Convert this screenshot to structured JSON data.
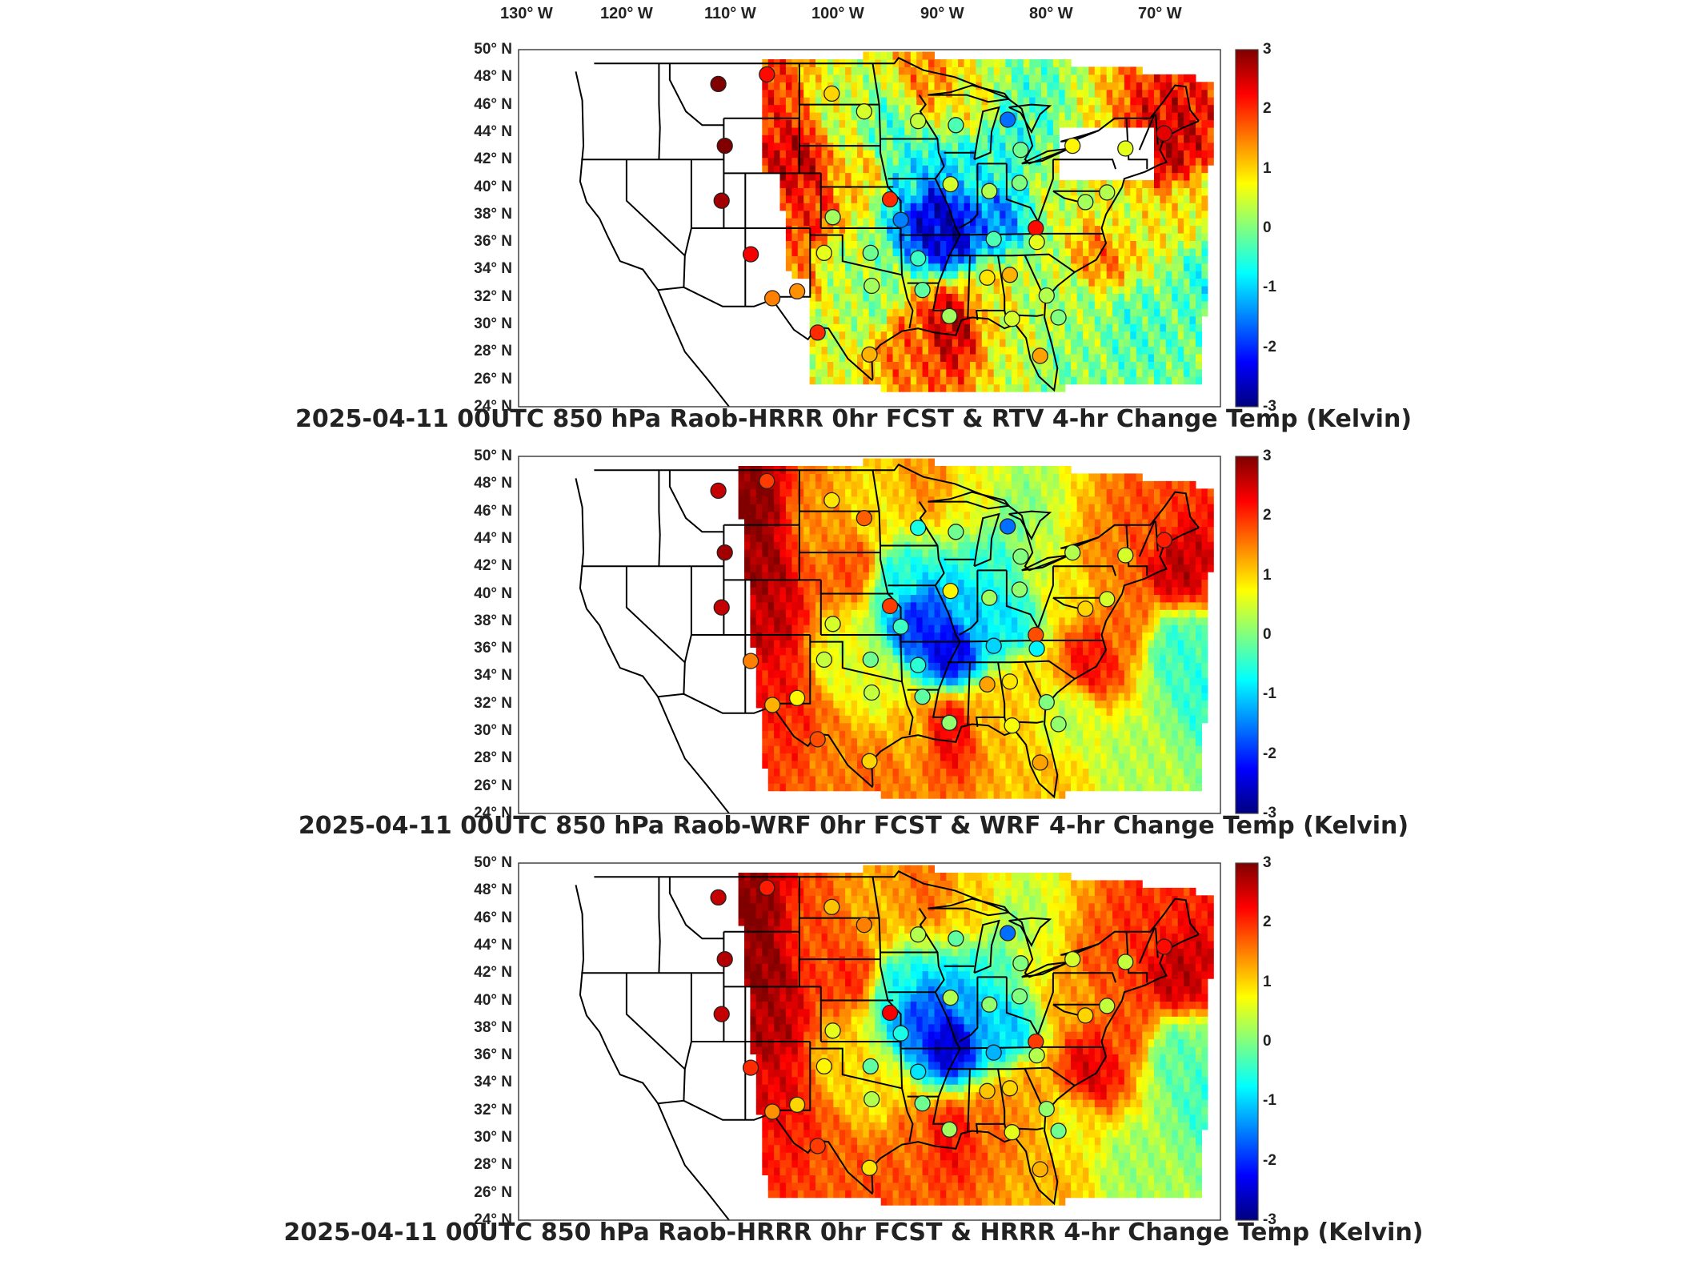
{
  "lon_labels": [
    "130° W",
    "120° W",
    "110° W",
    "100° W",
    "90° W",
    "80° W",
    "70° W"
  ],
  "lat_labels": [
    "50° N",
    "48° N",
    "46° N",
    "44° N",
    "42° N",
    "40° N",
    "38° N",
    "36° N",
    "34° N",
    "32° N",
    "30° N",
    "28° N",
    "26° N",
    "24° N"
  ],
  "colorbar_ticks": [
    "3",
    "2",
    "1",
    "0",
    "-1",
    "-2",
    "-3"
  ],
  "colorbar_stops": [
    "#7f0000",
    "#ff0000",
    "#ff8000",
    "#ffff00",
    "#80ff80",
    "#00ffff",
    "#0080ff",
    "#0000ff",
    "#00007f"
  ],
  "panels": [
    {
      "caption": "2025-04-11 00UTC 850 hPa Raob-HRRR 0hr FCST & RTV 4-hr Change Temp (Kelvin)",
      "style": "rtv"
    },
    {
      "caption": "2025-04-11 00UTC 850 hPa Raob-WRF 0hr FCST & WRF 4-hr Change Temp (Kelvin)",
      "style": "wrf"
    },
    {
      "caption": "2025-04-11 00UTC 850 hPa Raob-HRRR 0hr FCST & HRRR 4-hr Change Temp (Kelvin)",
      "style": "hrrr"
    }
  ],
  "raob_stations": [
    {
      "lon": -111.5,
      "lat": 47.5,
      "v1": 3.0,
      "v2": 2.6,
      "v3": 2.6
    },
    {
      "lon": -107.0,
      "lat": 48.2,
      "v1": 2.2,
      "v2": 1.9,
      "v3": 2.1
    },
    {
      "lon": -101.0,
      "lat": 46.8,
      "v1": 1.0,
      "v2": 0.9,
      "v3": 1.1
    },
    {
      "lon": -98.0,
      "lat": 45.5,
      "v1": 0.5,
      "v2": 1.7,
      "v3": 1.5
    },
    {
      "lon": -93.0,
      "lat": 44.8,
      "v1": 0.4,
      "v2": -0.6,
      "v3": 0.3
    },
    {
      "lon": -89.5,
      "lat": 44.5,
      "v1": -0.3,
      "v2": -0.1,
      "v3": -0.2
    },
    {
      "lon": -84.7,
      "lat": 44.9,
      "v1": -1.6,
      "v2": -1.6,
      "v3": -1.6
    },
    {
      "lon": -83.5,
      "lat": 42.7,
      "v1": -0.1,
      "v2": 0.0,
      "v3": 0.0
    },
    {
      "lon": -78.7,
      "lat": 43.0,
      "v1": 0.8,
      "v2": 0.3,
      "v3": 0.5
    },
    {
      "lon": -73.8,
      "lat": 42.8,
      "v1": 0.6,
      "v2": 0.5,
      "v3": 0.4
    },
    {
      "lon": -70.2,
      "lat": 43.9,
      "v1": 2.4,
      "v2": 2.1,
      "v3": 2.2
    },
    {
      "lon": -110.9,
      "lat": 43.0,
      "v1": 3.0,
      "v2": 2.8,
      "v3": 2.7
    },
    {
      "lon": -111.2,
      "lat": 39.0,
      "v1": 2.8,
      "v2": 2.6,
      "v3": 2.6
    },
    {
      "lon": -108.5,
      "lat": 35.1,
      "v1": 2.3,
      "v2": 1.5,
      "v3": 2.0
    },
    {
      "lon": -106.5,
      "lat": 31.9,
      "v1": 1.5,
      "v2": 1.2,
      "v3": 1.4
    },
    {
      "lon": -104.2,
      "lat": 32.4,
      "v1": 1.4,
      "v2": 0.8,
      "v3": 1.0
    },
    {
      "lon": -102.3,
      "lat": 29.4,
      "v1": 2.0,
      "v2": 1.8,
      "v3": 1.9
    },
    {
      "lon": -101.7,
      "lat": 35.2,
      "v1": 0.6,
      "v2": 0.4,
      "v3": 0.8
    },
    {
      "lon": -97.4,
      "lat": 35.2,
      "v1": -0.1,
      "v2": -0.1,
      "v3": -0.2
    },
    {
      "lon": -100.9,
      "lat": 37.8,
      "v1": 0.2,
      "v2": 0.5,
      "v3": 0.6
    },
    {
      "lon": -95.6,
      "lat": 39.1,
      "v1": 2.0,
      "v2": 1.9,
      "v3": 2.3
    },
    {
      "lon": -97.3,
      "lat": 32.8,
      "v1": 0.2,
      "v2": 0.4,
      "v3": 0.3
    },
    {
      "lon": -92.6,
      "lat": 32.5,
      "v1": -0.2,
      "v2": -0.2,
      "v3": -0.1
    },
    {
      "lon": -94.6,
      "lat": 37.6,
      "v1": -1.5,
      "v2": -0.4,
      "v3": -0.6
    },
    {
      "lon": -93.0,
      "lat": 34.8,
      "v1": -0.4,
      "v2": -0.5,
      "v3": -0.9
    },
    {
      "lon": -90.0,
      "lat": 40.2,
      "v1": 0.5,
      "v2": 0.8,
      "v3": 0.3
    },
    {
      "lon": -86.4,
      "lat": 39.7,
      "v1": 0.3,
      "v2": 0.2,
      "v3": 0.1
    },
    {
      "lon": -83.6,
      "lat": 40.3,
      "v1": 0.0,
      "v2": 0.1,
      "v3": 0.0
    },
    {
      "lon": -82.1,
      "lat": 37.0,
      "v1": 2.2,
      "v2": 1.8,
      "v3": 1.9
    },
    {
      "lon": -86.0,
      "lat": 36.2,
      "v1": -0.3,
      "v2": -1.0,
      "v3": -1.2
    },
    {
      "lon": -82.0,
      "lat": 36.0,
      "v1": 0.6,
      "v2": -0.8,
      "v3": 0.3
    },
    {
      "lon": -86.6,
      "lat": 33.4,
      "v1": 0.9,
      "v2": 1.3,
      "v3": 1.1
    },
    {
      "lon": -84.5,
      "lat": 33.6,
      "v1": 1.2,
      "v2": 0.9,
      "v3": 1.0
    },
    {
      "lon": -81.1,
      "lat": 32.1,
      "v1": 0.3,
      "v2": 0.0,
      "v3": 0.1
    },
    {
      "lon": -80.0,
      "lat": 30.5,
      "v1": 0.0,
      "v2": 0.1,
      "v3": -0.1
    },
    {
      "lon": -97.5,
      "lat": 27.8,
      "v1": 1.2,
      "v2": 1.0,
      "v3": 0.9
    },
    {
      "lon": -90.1,
      "lat": 30.6,
      "v1": 0.2,
      "v2": 0.1,
      "v3": 0.2
    },
    {
      "lon": -84.3,
      "lat": 30.4,
      "v1": 0.5,
      "v2": 0.7,
      "v3": 0.6
    },
    {
      "lon": -81.7,
      "lat": 27.7,
      "v1": 1.3,
      "v2": 1.3,
      "v3": 1.2
    },
    {
      "lon": -77.5,
      "lat": 38.9,
      "v1": 0.2,
      "v2": 1.0,
      "v3": 1.0
    },
    {
      "lon": -75.5,
      "lat": 39.6,
      "v1": 0.3,
      "v2": 0.5,
      "v3": 0.4
    }
  ]
}
